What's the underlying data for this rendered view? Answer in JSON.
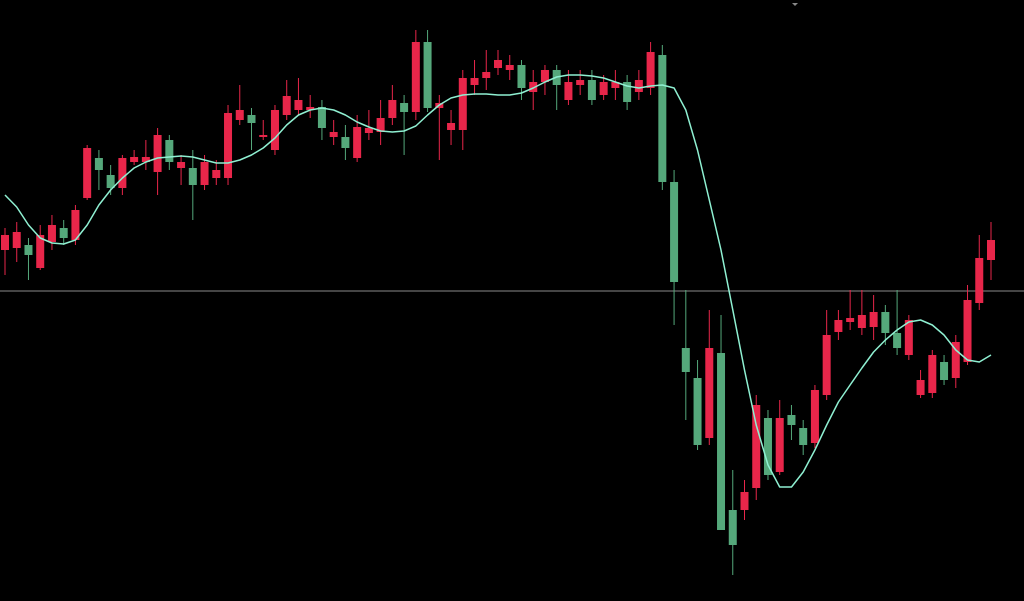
{
  "chart_data": {
    "type": "candlestick",
    "open": [
      351,
      353,
      356,
      333,
      359,
      373,
      361,
      403,
      443,
      426,
      413,
      439,
      439,
      429,
      461,
      433,
      433,
      416,
      423,
      423,
      481,
      486,
      464,
      451,
      486,
      491,
      491,
      494,
      464,
      464,
      443,
      468,
      469,
      483,
      498,
      489,
      559,
      493,
      471,
      471,
      516,
      523,
      533,
      531,
      536,
      509,
      519,
      531,
      501,
      516,
      521,
      506,
      513,
      519,
      509,
      513,
      546,
      419,
      253,
      223,
      163,
      248,
      91,
      91,
      113,
      183,
      129,
      186,
      173,
      158,
      206,
      269,
      279,
      273,
      274,
      289,
      268,
      246,
      206,
      208,
      239,
      223,
      239,
      298,
      341
    ],
    "high": [
      373,
      379,
      363,
      376,
      386,
      381,
      396,
      456,
      451,
      436,
      446,
      451,
      461,
      473,
      466,
      446,
      451,
      446,
      441,
      496,
      516,
      493,
      481,
      496,
      521,
      523,
      506,
      501,
      481,
      476,
      486,
      491,
      501,
      516,
      506,
      571,
      571,
      506,
      491,
      531,
      541,
      551,
      551,
      546,
      541,
      531,
      536,
      536,
      531,
      531,
      531,
      526,
      531,
      526,
      531,
      559,
      556,
      431,
      311,
      241,
      291,
      286,
      131,
      121,
      206,
      191,
      201,
      196,
      181,
      216,
      291,
      291,
      311,
      311,
      306,
      296,
      311,
      286,
      231,
      251,
      246,
      266,
      316,
      366,
      379
    ],
    "low": [
      326,
      339,
      321,
      331,
      351,
      356,
      356,
      401,
      411,
      406,
      406,
      436,
      431,
      406,
      431,
      416,
      381,
      411,
      416,
      416,
      476,
      451,
      461,
      446,
      481,
      486,
      483,
      461,
      456,
      441,
      439,
      461,
      456,
      476,
      446,
      481,
      489,
      441,
      456,
      451,
      506,
      511,
      526,
      521,
      501,
      491,
      506,
      491,
      496,
      506,
      496,
      501,
      501,
      491,
      501,
      506,
      411,
      276,
      181,
      151,
      156,
      71,
      26,
      81,
      101,
      121,
      126,
      161,
      146,
      153,
      201,
      261,
      271,
      266,
      261,
      256,
      246,
      241,
      203,
      203,
      216,
      213,
      236,
      291,
      321
    ],
    "close": [
      366,
      369,
      346,
      366,
      376,
      363,
      391,
      453,
      431,
      413,
      443,
      444,
      444,
      466,
      439,
      439,
      416,
      439,
      431,
      488,
      491,
      478,
      466,
      491,
      505,
      501,
      494,
      473,
      469,
      453,
      474,
      473,
      483,
      501,
      489,
      559,
      493,
      498,
      478,
      523,
      523,
      529,
      541,
      536,
      513,
      519,
      531,
      516,
      519,
      521,
      501,
      519,
      519,
      499,
      521,
      549,
      419,
      319,
      229,
      156,
      253,
      71,
      56,
      109,
      196,
      126,
      183,
      176,
      156,
      211,
      266,
      281,
      283,
      286,
      289,
      268,
      253,
      281,
      221,
      246,
      221,
      259,
      301,
      343,
      361
    ],
    "up_color": "#e8264a",
    "down_color": "#55a87b",
    "ylim": [
      0,
      601
    ],
    "lines": [
      {
        "type": "line",
        "color": "#8ff0d2",
        "values": [
          406,
          394,
          376,
          363,
          358,
          357,
          361,
          376,
          396,
          411,
          423,
          433,
          439,
          443,
          444,
          445,
          444,
          441,
          438,
          438,
          441,
          446,
          453,
          463,
          476,
          486,
          491,
          493,
          491,
          486,
          479,
          474,
          470,
          469,
          470,
          475,
          486,
          496,
          503,
          506,
          507,
          507,
          506,
          506,
          508,
          513,
          519,
          524,
          526,
          526,
          525,
          523,
          519,
          515,
          513,
          515,
          516,
          513,
          491,
          451,
          401,
          351,
          291,
          231,
          176,
          136,
          114,
          114,
          129,
          151,
          176,
          199,
          216,
          233,
          249,
          261,
          271,
          279,
          281,
          276,
          266,
          251,
          241,
          239,
          246
        ]
      }
    ],
    "hline": {
      "value": 310,
      "color": "#8a8a8a"
    }
  }
}
